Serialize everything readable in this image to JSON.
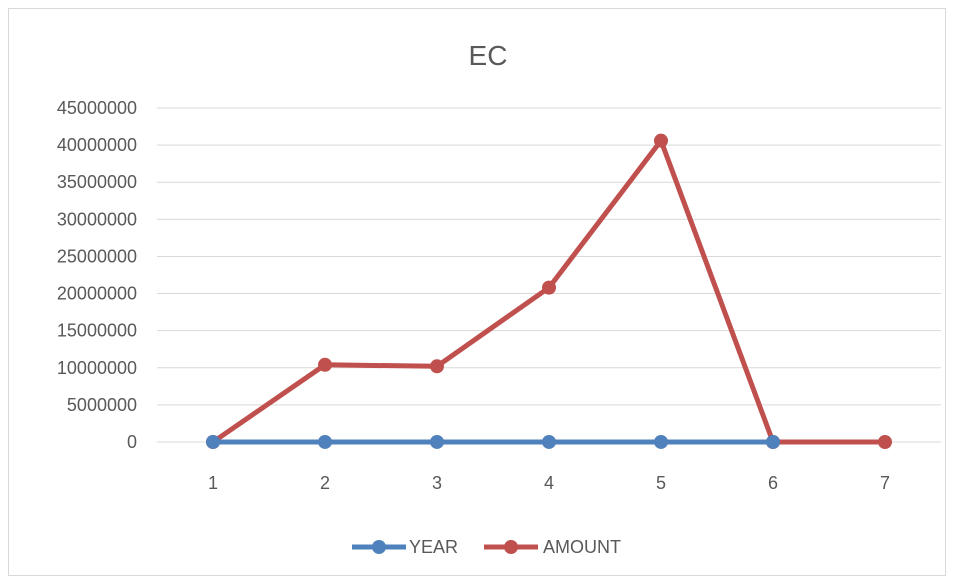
{
  "chart_data": {
    "type": "line",
    "title": "EC",
    "categories": [
      "1",
      "2",
      "3",
      "4",
      "5",
      "6",
      "7"
    ],
    "ylim": [
      0,
      45000000
    ],
    "y_ticks": [
      0,
      5000000,
      10000000,
      15000000,
      20000000,
      25000000,
      30000000,
      35000000,
      40000000,
      45000000
    ],
    "grid": true,
    "legend_position": "bottom",
    "series": [
      {
        "name": "YEAR",
        "color": "#4f81bd",
        "values": [
          2010,
          2011,
          2012,
          2013,
          2014,
          2015,
          null
        ]
      },
      {
        "name": "AMOUNT",
        "color": "#c0504d",
        "values": [
          0,
          10400000,
          10200000,
          20800000,
          40600000,
          0,
          0
        ]
      }
    ]
  }
}
